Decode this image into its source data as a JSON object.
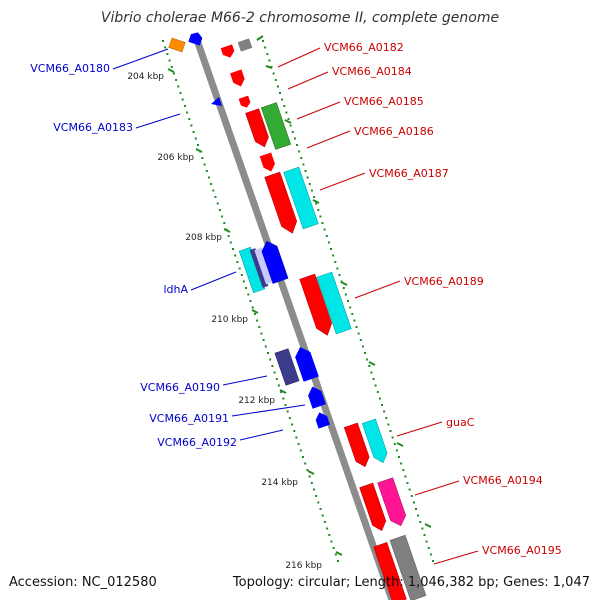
{
  "title": "Vibrio cholerae M66-2 chromosome II, complete genome",
  "footer": {
    "accession": "Accession: NC_012580",
    "summary": "Topology: circular; Length: 1,046,382 bp; Genes: 1,047"
  },
  "colors": {
    "backbone": "#8c8c8c",
    "tick": "#1f8a1f",
    "forward_label": "#cc0000",
    "reverse_label": "#0000cc",
    "red": "#ff0000",
    "blue": "#0000ff",
    "cyan": "#00e5e5",
    "green": "#33aa33",
    "gray": "#808080",
    "orange": "#ff8c00",
    "navy": "#3c3c8c",
    "magenta": "#ff1493"
  },
  "ticks": [
    "204 kbp",
    "206 kbp",
    "208 kbp",
    "210 kbp",
    "212 kbp",
    "214 kbp",
    "216 kbp"
  ],
  "labels": {
    "forward": [
      "VCM66_A0182",
      "VCM66_A0184",
      "VCM66_A0185",
      "VCM66_A0186",
      "VCM66_A0187",
      "VCM66_A0189",
      "guaC",
      "VCM66_A0194",
      "VCM66_A0195"
    ],
    "reverse": [
      "VCM66_A0180",
      "VCM66_A0183",
      "ldhA",
      "VCM66_A0190",
      "VCM66_A0191",
      "VCM66_A0192"
    ]
  }
}
